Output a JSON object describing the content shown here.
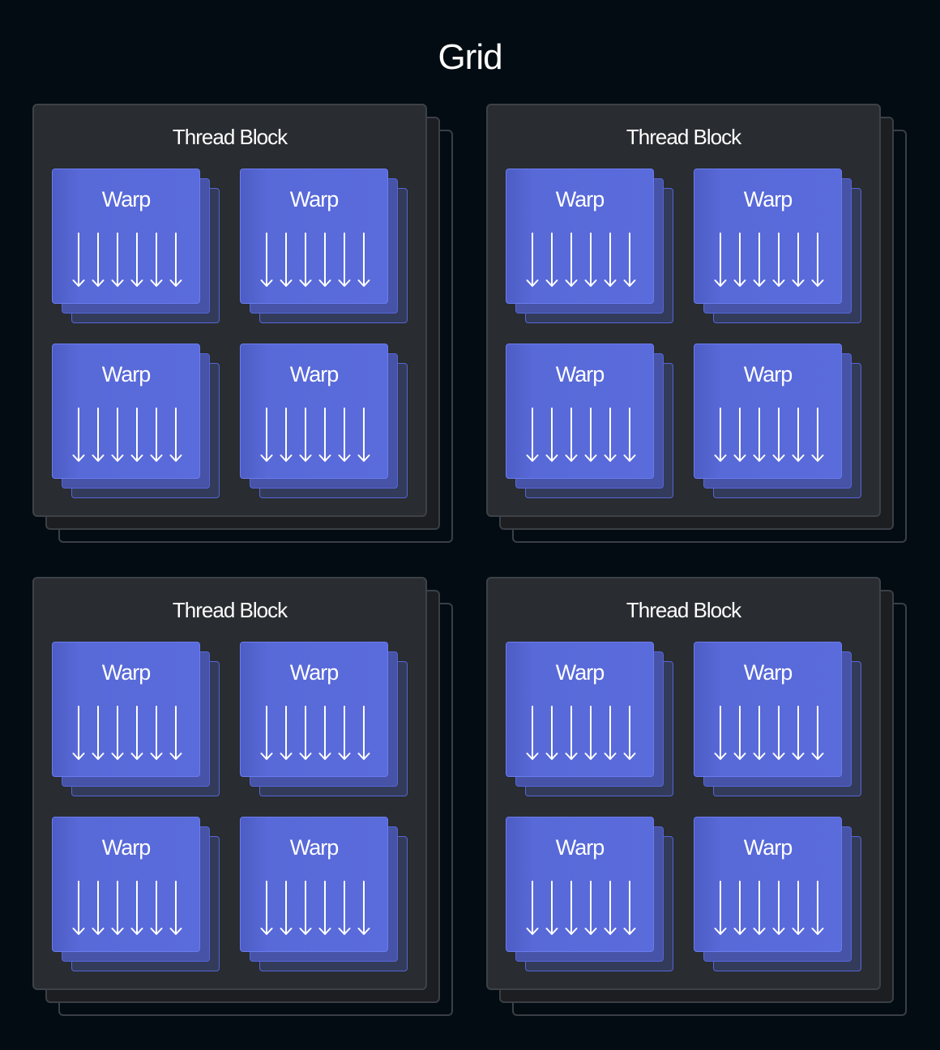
{
  "title": "Grid",
  "blocks": [
    {
      "label": "Thread Block",
      "warps": [
        "Warp",
        "Warp",
        "Warp",
        "Warp"
      ]
    },
    {
      "label": "Thread Block",
      "warps": [
        "Warp",
        "Warp",
        "Warp",
        "Warp"
      ]
    },
    {
      "label": "Thread Block",
      "warps": [
        "Warp",
        "Warp",
        "Warp",
        "Warp"
      ]
    },
    {
      "label": "Thread Block",
      "warps": [
        "Warp",
        "Warp",
        "Warp",
        "Warp"
      ]
    }
  ],
  "threads_per_warp_shown": 6,
  "colors": {
    "background": "#020c12",
    "block": "#292c30",
    "warp": "#5a6bdb",
    "arrow": "#ffffff"
  }
}
